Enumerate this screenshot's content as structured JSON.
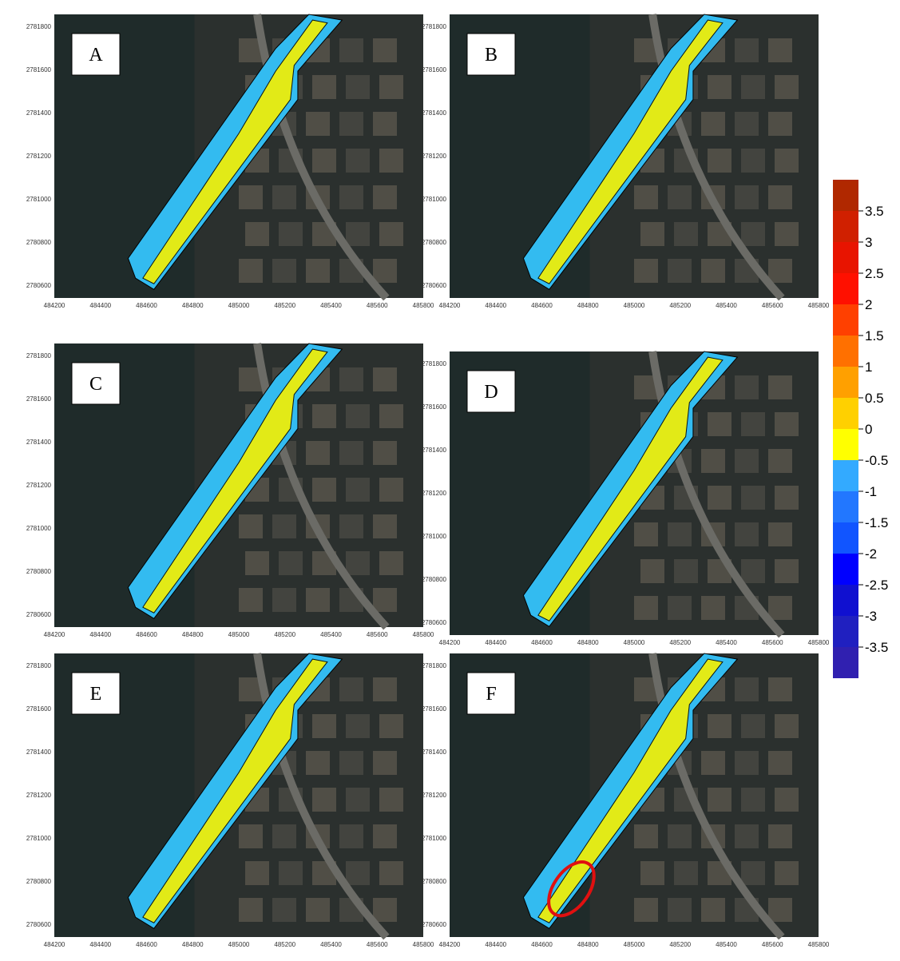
{
  "panels": [
    {
      "label": "A"
    },
    {
      "label": "B"
    },
    {
      "label": "C"
    },
    {
      "label": "D"
    },
    {
      "label": "E"
    },
    {
      "label": "F"
    }
  ],
  "x_ticks": [
    484200,
    484400,
    484600,
    484800,
    485000,
    485200,
    485400,
    485600,
    485800
  ],
  "y_ticks": [
    2781800,
    2781600,
    2781400,
    2781200,
    2781000,
    2780800,
    2780600
  ],
  "colorbar": {
    "labels": [
      "3.5",
      "3",
      "2.5",
      "2",
      "1.5",
      "1",
      "0.5",
      "0",
      "-0.5",
      "-1",
      "-1.5",
      "-2",
      "-2.5",
      "-3",
      "-3.5"
    ],
    "colors": [
      "#b02800",
      "#d02000",
      "#e81400",
      "#ff1000",
      "#ff4000",
      "#ff7000",
      "#ffa000",
      "#ffd000",
      "#ffff00",
      "#33aaff",
      "#2277ff",
      "#1155ff",
      "#0000ff",
      "#1010d0",
      "#2020c0",
      "#3020b0"
    ]
  }
}
